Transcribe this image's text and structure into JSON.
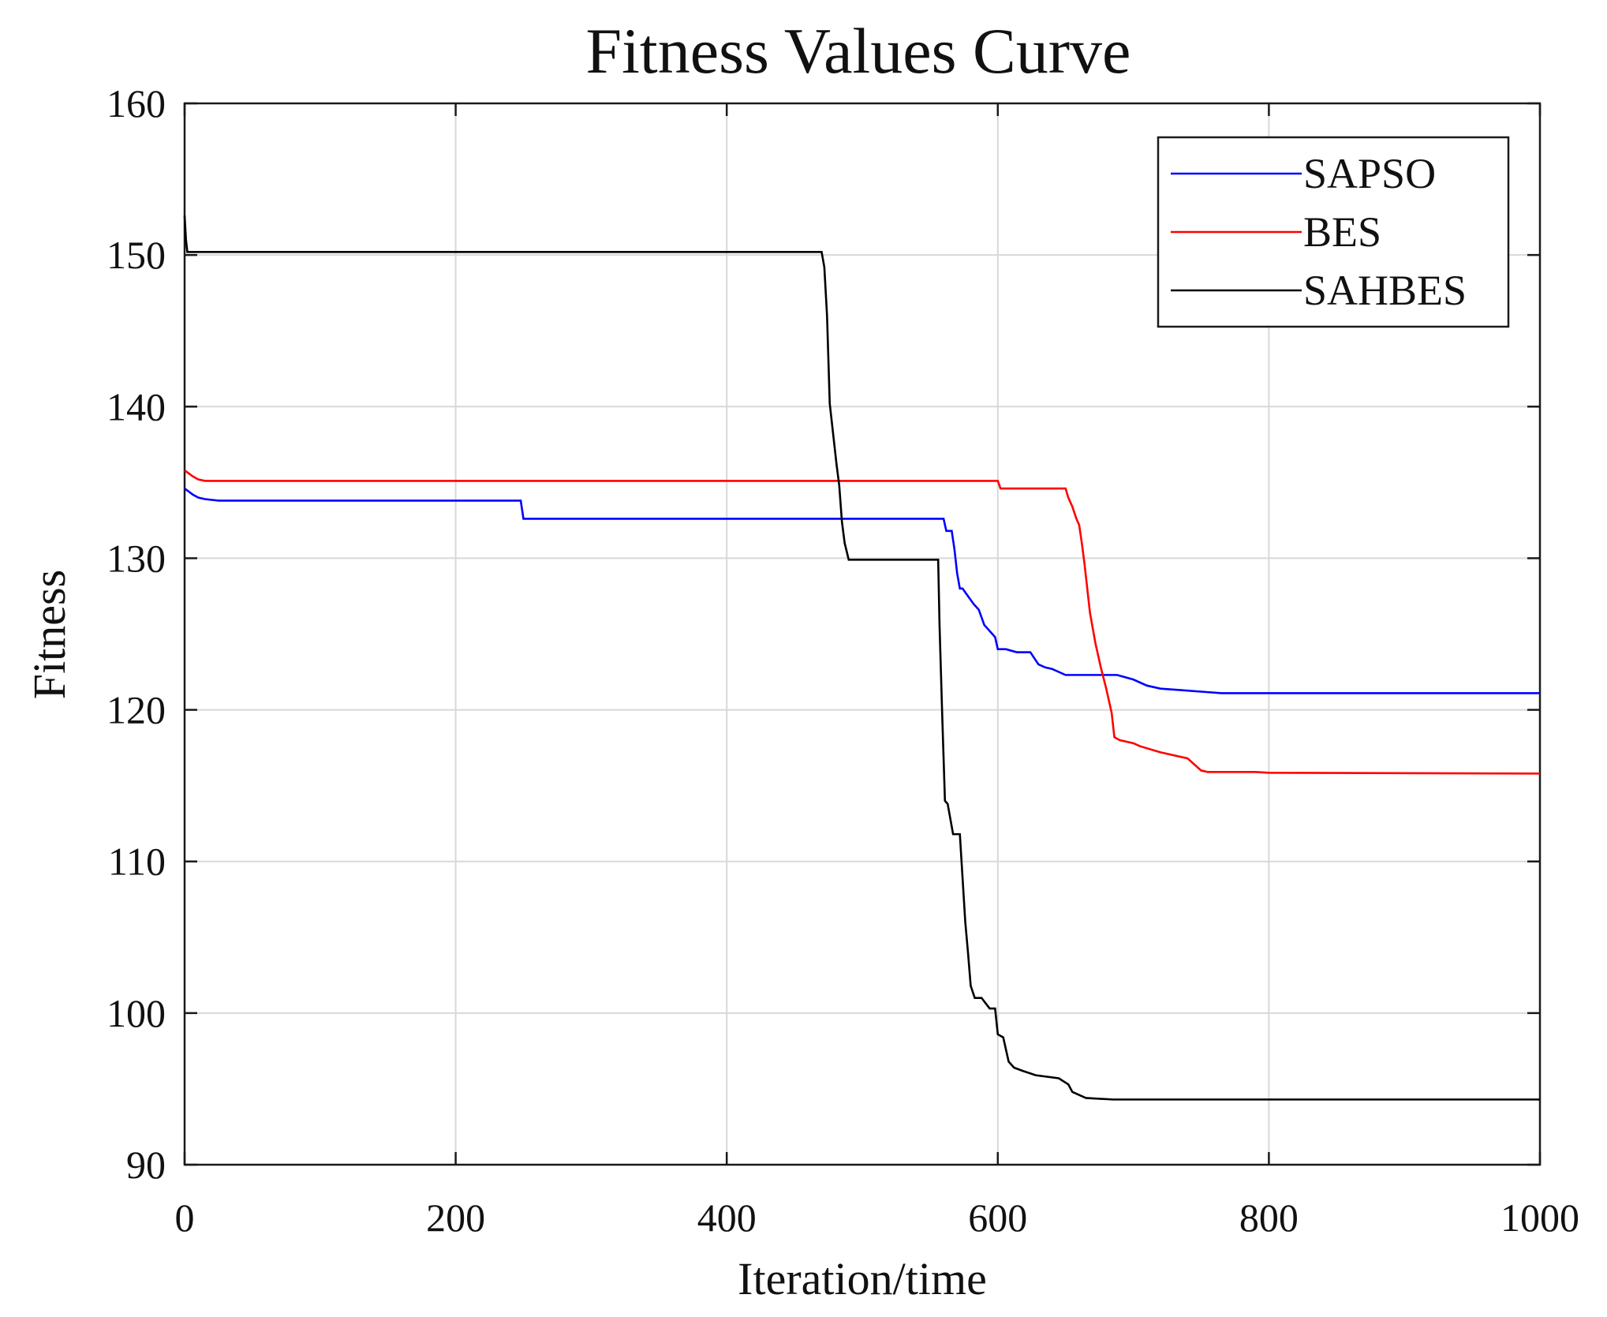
{
  "chart_data": {
    "type": "line",
    "title": "Fitness Values Curve",
    "xlabel": "Iteration/time",
    "ylabel": "Fitness",
    "xlim": [
      0,
      1000
    ],
    "ylim": [
      90,
      160
    ],
    "xticks": [
      0,
      200,
      400,
      600,
      800,
      1000
    ],
    "yticks": [
      90,
      100,
      110,
      120,
      130,
      140,
      150,
      160
    ],
    "grid": true,
    "legend_position": "top-right",
    "series": [
      {
        "name": "SAPSO",
        "color": "#0000ff",
        "x": [
          0,
          3,
          6,
          10,
          15,
          25,
          40,
          248,
          250,
          560,
          562,
          566,
          568,
          570,
          572,
          574,
          578,
          582,
          586,
          590,
          594,
          598,
          600,
          603,
          606,
          614,
          624,
          630,
          635,
          640,
          650,
          665,
          688,
          700,
          710,
          720,
          735,
          750,
          765,
          1000
        ],
        "y": [
          134.6,
          134.4,
          134.2,
          134.0,
          133.9,
          133.8,
          133.8,
          133.8,
          132.6,
          132.6,
          131.8,
          131.8,
          130.6,
          129.0,
          128.0,
          128.0,
          127.5,
          127.0,
          126.6,
          125.6,
          125.2,
          124.8,
          124.0,
          124.0,
          124.0,
          123.8,
          123.8,
          123.0,
          122.8,
          122.7,
          122.3,
          122.3,
          122.3,
          122.0,
          121.6,
          121.4,
          121.3,
          121.2,
          121.1,
          121.1
        ]
      },
      {
        "name": "BES",
        "color": "#ff0000",
        "x": [
          0,
          3,
          6,
          10,
          15,
          600,
          602,
          650,
          652,
          655,
          658,
          660,
          662,
          664,
          666,
          668,
          672,
          676,
          680,
          684,
          686,
          690,
          700,
          705,
          720,
          740,
          745,
          750,
          755,
          790,
          800,
          1000
        ],
        "y": [
          135.8,
          135.6,
          135.4,
          135.2,
          135.1,
          135.1,
          134.6,
          134.6,
          134.0,
          133.4,
          132.6,
          132.2,
          131.0,
          129.6,
          128.0,
          126.4,
          124.4,
          122.8,
          121.4,
          119.8,
          118.2,
          118.0,
          117.8,
          117.6,
          117.2,
          116.8,
          116.4,
          116.0,
          115.9,
          115.9,
          115.85,
          115.8
        ]
      },
      {
        "name": "SAHBES",
        "color": "#000000",
        "x": [
          0,
          1,
          2,
          3,
          470,
          472,
          474,
          476,
          478,
          481,
          483,
          485,
          487,
          490,
          556,
          557,
          559,
          561,
          563,
          567,
          572,
          576,
          578,
          580,
          583,
          588,
          594,
          598,
          600,
          604,
          608,
          612,
          618,
          628,
          645,
          652,
          655,
          665,
          685,
          700,
          750,
          1000
        ],
        "y": [
          152.6,
          151.0,
          150.2,
          150.2,
          150.2,
          149.2,
          146.0,
          140.2,
          138.6,
          136.2,
          134.8,
          132.4,
          131.0,
          129.9,
          129.9,
          125.6,
          119.6,
          114.0,
          113.8,
          111.8,
          111.8,
          106.0,
          104.0,
          101.8,
          101.0,
          101.0,
          100.3,
          100.3,
          98.6,
          98.4,
          96.8,
          96.4,
          96.2,
          95.9,
          95.7,
          95.3,
          94.8,
          94.4,
          94.3,
          94.3,
          94.3,
          94.3
        ]
      }
    ]
  }
}
